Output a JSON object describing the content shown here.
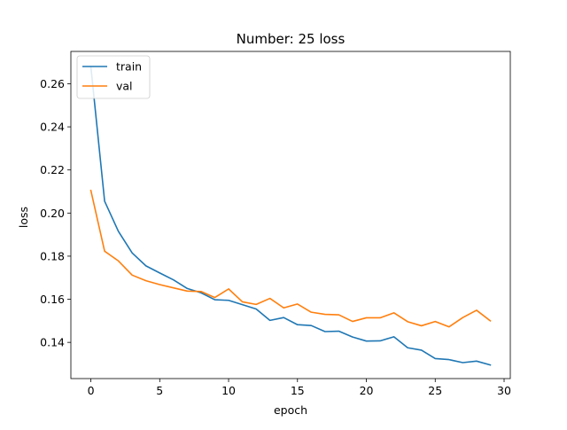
{
  "chart_data": {
    "type": "line",
    "title": "Number: 25 loss",
    "xlabel": "epoch",
    "ylabel": "loss",
    "xlim": [
      -1.45,
      30.45
    ],
    "ylim": [
      0.1232,
      0.275
    ],
    "xticks": [
      0,
      5,
      10,
      15,
      20,
      25,
      30
    ],
    "yticks": [
      0.14,
      0.16,
      0.18,
      0.2,
      0.22,
      0.24,
      0.26
    ],
    "grid": false,
    "legend_position": "upper-left",
    "x": [
      0,
      1,
      2,
      3,
      4,
      5,
      6,
      7,
      8,
      9,
      10,
      11,
      12,
      13,
      14,
      15,
      16,
      17,
      18,
      19,
      20,
      21,
      22,
      23,
      24,
      25,
      26,
      27,
      28,
      29
    ],
    "series": [
      {
        "name": "train",
        "color": "#1f77b4",
        "values": [
          0.268,
          0.2055,
          0.1915,
          0.1815,
          0.1755,
          0.1722,
          0.169,
          0.165,
          0.163,
          0.1598,
          0.1595,
          0.1575,
          0.1555,
          0.1502,
          0.1515,
          0.1482,
          0.1478,
          0.145,
          0.1452,
          0.1425,
          0.1406,
          0.1407,
          0.1426,
          0.1375,
          0.1364,
          0.1325,
          0.132,
          0.1306,
          0.1313,
          0.1295
        ]
      },
      {
        "name": "val",
        "color": "#ff7f0e",
        "values": [
          0.2105,
          0.1823,
          0.1778,
          0.1712,
          0.1686,
          0.1668,
          0.1653,
          0.1638,
          0.1636,
          0.1608,
          0.1648,
          0.1588,
          0.1576,
          0.1604,
          0.156,
          0.1578,
          0.154,
          0.153,
          0.1528,
          0.1497,
          0.1514,
          0.1514,
          0.1537,
          0.1496,
          0.1477,
          0.1497,
          0.1472,
          0.1515,
          0.1549,
          0.15
        ]
      }
    ]
  }
}
